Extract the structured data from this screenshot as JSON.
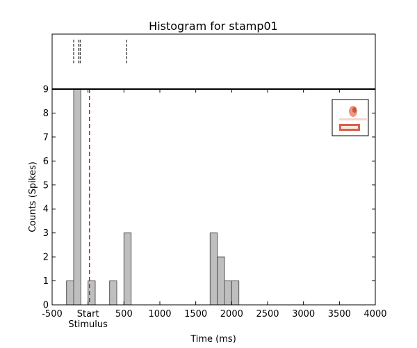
{
  "chart_data": {
    "type": "bar",
    "title": "Histogram for stamp01",
    "xlabel": "Time (ms)",
    "ylabel": "Counts (Spikes)",
    "xlim": [
      -500,
      4000
    ],
    "ylim": [
      0,
      9
    ],
    "xticks": [
      -500,
      0,
      500,
      1000,
      1500,
      2000,
      2500,
      3000,
      3500,
      4000
    ],
    "xtick_labels": [
      "-500",
      "Start",
      "500",
      "1000",
      "1500",
      "2000",
      "2500",
      "3000",
      "3500",
      "4000"
    ],
    "xtick_sublabels": {
      "Start": "Stimulus"
    },
    "yticks": [
      0,
      1,
      2,
      3,
      4,
      5,
      6,
      7,
      8,
      9
    ],
    "bin_width": 100,
    "bins": [
      {
        "x0": -300,
        "count": 1
      },
      {
        "x0": -200,
        "count": 9
      },
      {
        "x0": 0,
        "count": 1
      },
      {
        "x0": 300,
        "count": 1
      },
      {
        "x0": 500,
        "count": 3
      },
      {
        "x0": 1700,
        "count": 3
      },
      {
        "x0": 1800,
        "count": 2
      },
      {
        "x0": 1900,
        "count": 1
      },
      {
        "x0": 2000,
        "count": 1
      }
    ],
    "stimulus_line_x": 20,
    "raster_spikes": [
      -200,
      -130,
      -110,
      540
    ],
    "bar_color": "#bfbfbf",
    "bar_edge_color": "#555555",
    "stimulus_line_color": "#e0191b",
    "grid": false,
    "legend": "top-right"
  }
}
